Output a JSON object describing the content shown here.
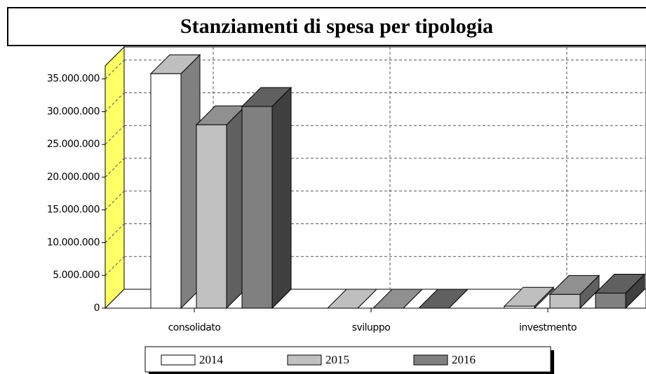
{
  "chart_data": {
    "type": "bar3d",
    "title": "Stanziamenti di spesa per tipologia",
    "categories": [
      "consolidato",
      "sviluppo",
      "investmento"
    ],
    "series": [
      {
        "name": "2014",
        "color": "#ffffff",
        "values": [
          35800000,
          0,
          300000
        ]
      },
      {
        "name": "2015",
        "color": "#c0c0c0",
        "values": [
          28000000,
          0,
          2100000
        ]
      },
      {
        "name": "2016",
        "color": "#808080",
        "values": [
          30800000,
          0,
          2300000
        ]
      }
    ],
    "ylim": [
      0,
      37000000
    ],
    "yticks": [
      0,
      {
        "value": 5000000,
        "label": "5.000.000"
      },
      {
        "value": 10000000,
        "label": "10.000.000"
      },
      {
        "value": 15000000,
        "label": "15.000.000"
      },
      {
        "value": 20000000,
        "label": "20.000.000"
      },
      {
        "value": 25000000,
        "label": "25.000.000"
      },
      {
        "value": 30000000,
        "label": "30.000.000"
      },
      {
        "value": 35000000,
        "label": "35.000.000"
      }
    ],
    "grid": true
  }
}
